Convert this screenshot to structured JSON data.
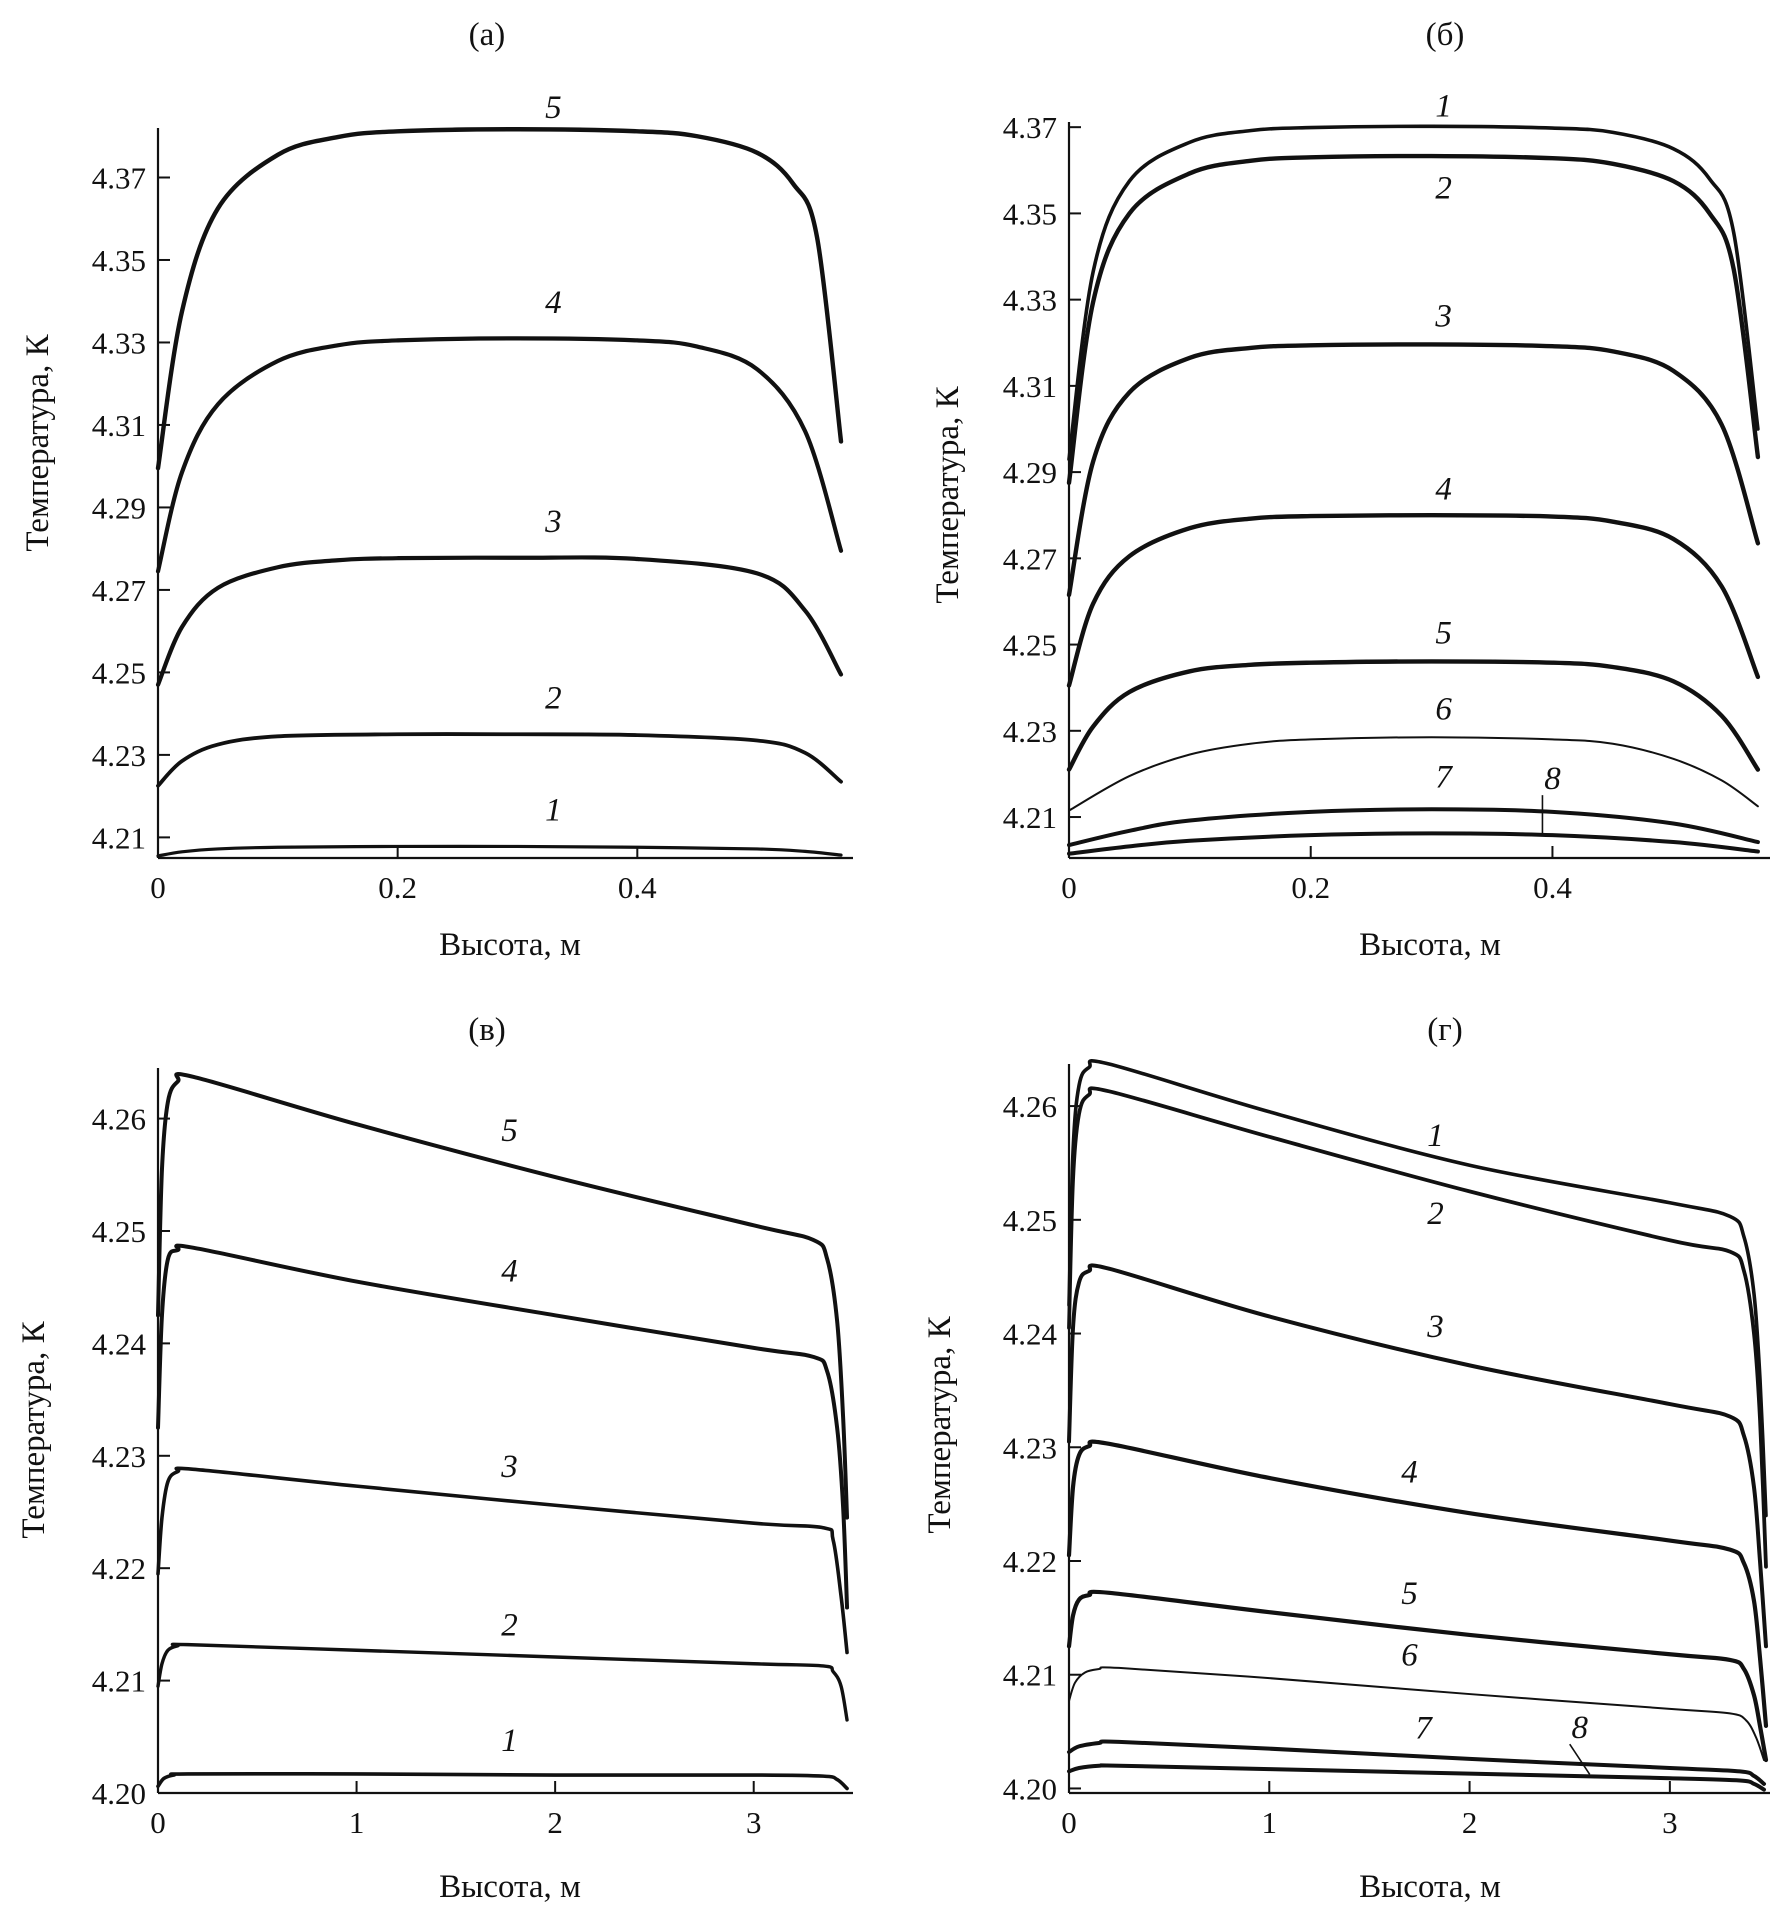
{
  "figure": {
    "panels": [
      {
        "id": "a",
        "title": "(а)"
      },
      {
        "id": "b",
        "title": "(б)"
      },
      {
        "id": "c",
        "title": "(в)"
      },
      {
        "id": "d",
        "title": "(г)"
      }
    ]
  },
  "chart_data": [
    {
      "type": "line",
      "title": "(а)",
      "xlabel": "Высота, м",
      "ylabel": "Температура, К",
      "xlim": [
        0,
        0.58
      ],
      "ylim": [
        4.205,
        4.382
      ],
      "xticks": [
        0,
        0.2,
        0.4
      ],
      "xtick_labels": [
        "0",
        "0.2",
        "0.4"
      ],
      "yticks": [
        4.21,
        4.23,
        4.25,
        4.27,
        4.29,
        4.31,
        4.33,
        4.35,
        4.37
      ],
      "ytick_labels": [
        "4.21",
        "4.23",
        "4.25",
        "4.27",
        "4.29",
        "4.31",
        "4.33",
        "4.35",
        "4.37"
      ],
      "series": [
        {
          "name": "1",
          "x": [
            0,
            0.02,
            0.05,
            0.1,
            0.2,
            0.3,
            0.4,
            0.5,
            0.54,
            0.57
          ],
          "y": [
            4.2055,
            4.2065,
            4.2072,
            4.2076,
            4.2078,
            4.2078,
            4.2076,
            4.2072,
            4.2066,
            4.2057
          ]
        },
        {
          "name": "2",
          "x": [
            0,
            0.02,
            0.05,
            0.1,
            0.2,
            0.3,
            0.4,
            0.5,
            0.54,
            0.57
          ],
          "y": [
            4.2225,
            4.2285,
            4.2325,
            4.2345,
            4.235,
            4.235,
            4.2348,
            4.2335,
            4.2305,
            4.2235
          ]
        },
        {
          "name": "3",
          "x": [
            0,
            0.02,
            0.05,
            0.1,
            0.15,
            0.2,
            0.3,
            0.4,
            0.5,
            0.54,
            0.57
          ],
          "y": [
            4.247,
            4.261,
            4.2705,
            4.2755,
            4.2772,
            4.2777,
            4.2778,
            4.2775,
            4.274,
            4.265,
            4.2495
          ]
        },
        {
          "name": "4",
          "x": [
            0,
            0.02,
            0.05,
            0.1,
            0.15,
            0.2,
            0.3,
            0.4,
            0.45,
            0.5,
            0.54,
            0.57
          ],
          "y": [
            4.2745,
            4.2985,
            4.315,
            4.3255,
            4.3293,
            4.3305,
            4.331,
            4.3305,
            4.329,
            4.3235,
            4.3085,
            4.2795
          ]
        },
        {
          "name": "5",
          "x": [
            0,
            0.02,
            0.05,
            0.1,
            0.15,
            0.2,
            0.3,
            0.4,
            0.45,
            0.5,
            0.53,
            0.55,
            0.57
          ],
          "y": [
            4.2995,
            4.3375,
            4.3625,
            4.3755,
            4.3798,
            4.3812,
            4.3817,
            4.3812,
            4.38,
            4.376,
            4.3685,
            4.3555,
            4.306
          ]
        }
      ]
    },
    {
      "type": "line",
      "title": "(б)",
      "xlabel": "Высота, м",
      "ylabel": "Температура, К",
      "xlim": [
        0,
        0.58
      ],
      "ylim": [
        4.2005,
        4.3712
      ],
      "xticks": [
        0,
        0.2,
        0.4
      ],
      "xtick_labels": [
        "0",
        "0.2",
        "0.4"
      ],
      "yticks": [
        4.21,
        4.23,
        4.25,
        4.27,
        4.29,
        4.31,
        4.33,
        4.35,
        4.37
      ],
      "ytick_labels": [
        "4.21",
        "4.23",
        "4.25",
        "4.27",
        "4.29",
        "4.31",
        "4.33",
        "4.35",
        "4.37"
      ],
      "series": [
        {
          "name": "1",
          "x": [
            0,
            0.02,
            0.05,
            0.1,
            0.15,
            0.2,
            0.3,
            0.4,
            0.45,
            0.5,
            0.53,
            0.55,
            0.57
          ],
          "y": [
            4.293,
            4.3365,
            4.3575,
            4.3665,
            4.3692,
            4.3699,
            4.3702,
            4.3698,
            4.3688,
            4.365,
            4.358,
            4.3455,
            4.3
          ]
        },
        {
          "name": "2",
          "x": [
            0,
            0.02,
            0.05,
            0.1,
            0.15,
            0.2,
            0.3,
            0.4,
            0.45,
            0.5,
            0.53,
            0.55,
            0.57
          ],
          "y": [
            4.2875,
            4.3295,
            4.35,
            4.3593,
            4.3622,
            4.363,
            4.3633,
            4.3628,
            4.3615,
            4.3575,
            4.35,
            4.337,
            4.2935
          ]
        },
        {
          "name": "3",
          "x": [
            0,
            0.02,
            0.05,
            0.1,
            0.15,
            0.2,
            0.3,
            0.4,
            0.45,
            0.5,
            0.54,
            0.57
          ],
          "y": [
            4.2615,
            4.2925,
            4.3085,
            4.3165,
            4.3188,
            4.3194,
            4.3196,
            4.3192,
            4.318,
            4.3135,
            4.301,
            4.2735
          ]
        },
        {
          "name": "4",
          "x": [
            0,
            0.02,
            0.05,
            0.1,
            0.15,
            0.2,
            0.3,
            0.4,
            0.45,
            0.5,
            0.54,
            0.57
          ],
          "y": [
            4.2405,
            4.2595,
            4.2705,
            4.277,
            4.2792,
            4.2798,
            4.28,
            4.2797,
            4.2785,
            4.2745,
            4.2635,
            4.2425
          ]
        },
        {
          "name": "5",
          "x": [
            0,
            0.02,
            0.05,
            0.1,
            0.15,
            0.2,
            0.3,
            0.4,
            0.45,
            0.5,
            0.54,
            0.57
          ],
          "y": [
            4.221,
            4.231,
            4.239,
            4.2438,
            4.2453,
            4.2458,
            4.2461,
            4.2458,
            4.2448,
            4.2415,
            4.2335,
            4.221
          ]
        },
        {
          "name": "6",
          "x": [
            0,
            0.05,
            0.1,
            0.15,
            0.2,
            0.3,
            0.4,
            0.45,
            0.5,
            0.54,
            0.57
          ],
          "y": [
            4.2115,
            4.2195,
            4.2245,
            4.227,
            4.228,
            4.2285,
            4.228,
            4.227,
            4.2235,
            4.2185,
            4.2125
          ]
        },
        {
          "name": "7",
          "x": [
            0,
            0.05,
            0.1,
            0.2,
            0.3,
            0.4,
            0.5,
            0.57
          ],
          "y": [
            4.2035,
            4.2068,
            4.2092,
            4.2112,
            4.2118,
            4.2112,
            4.2085,
            4.2042
          ]
        },
        {
          "name": "8",
          "x": [
            0,
            0.05,
            0.1,
            0.2,
            0.3,
            0.4,
            0.5,
            0.57
          ],
          "y": [
            4.2015,
            4.2032,
            4.2045,
            4.2058,
            4.2062,
            4.2058,
            4.2042,
            4.202
          ]
        }
      ]
    },
    {
      "type": "line",
      "title": "(в)",
      "xlabel": "Высота, м",
      "ylabel": "Температура, К",
      "xlim": [
        0,
        3.5
      ],
      "ylim": [
        4.2,
        4.2645
      ],
      "xticks": [
        0,
        1,
        2,
        3
      ],
      "xtick_labels": [
        "0",
        "1",
        "2",
        "3"
      ],
      "yticks": [
        4.2,
        4.21,
        4.22,
        4.23,
        4.24,
        4.25,
        4.26
      ],
      "ytick_labels": [
        "4.20",
        "4.21",
        "4.22",
        "4.23",
        "4.24",
        "4.25",
        "4.26"
      ],
      "series": [
        {
          "name": "1",
          "x": [
            0,
            0.03,
            0.08,
            0.15,
            1,
            2,
            3,
            3.35,
            3.42,
            3.47
          ],
          "y": [
            4.2006,
            4.2013,
            4.2016,
            4.2017,
            4.2017,
            4.2016,
            4.2016,
            4.2015,
            4.2012,
            4.2004
          ]
        },
        {
          "name": "2",
          "x": [
            0,
            0.02,
            0.05,
            0.1,
            0.15,
            1,
            2,
            3,
            3.35,
            3.4,
            3.44,
            3.47
          ],
          "y": [
            4.2095,
            4.2115,
            4.2127,
            4.2131,
            4.2132,
            4.2127,
            4.2121,
            4.2115,
            4.2113,
            4.2108,
            4.2095,
            4.2065
          ]
        },
        {
          "name": "3",
          "x": [
            0,
            0.02,
            0.05,
            0.1,
            0.18,
            1,
            2,
            3,
            3.35,
            3.4,
            3.44,
            3.47
          ],
          "y": [
            4.2195,
            4.2245,
            4.2277,
            4.2286,
            4.2288,
            4.2273,
            4.2256,
            4.224,
            4.2236,
            4.2225,
            4.2175,
            4.2125
          ]
        },
        {
          "name": "4",
          "x": [
            0,
            0.02,
            0.05,
            0.1,
            0.18,
            1,
            2,
            3,
            3.3,
            3.37,
            3.42,
            3.45,
            3.47
          ],
          "y": [
            4.2325,
            4.2425,
            4.2475,
            4.2483,
            4.2485,
            4.2455,
            4.2425,
            4.2396,
            4.2388,
            4.2375,
            4.2325,
            4.2255,
            4.2165
          ]
        },
        {
          "name": "5",
          "x": [
            0,
            0.02,
            0.05,
            0.1,
            0.18,
            1,
            2,
            3,
            3.3,
            3.37,
            3.42,
            3.45,
            3.47
          ],
          "y": [
            4.2425,
            4.2555,
            4.2615,
            4.2633,
            4.2637,
            4.2595,
            4.2548,
            4.2505,
            4.2492,
            4.2475,
            4.242,
            4.2335,
            4.2245
          ]
        }
      ]
    },
    {
      "type": "line",
      "title": "(г)",
      "xlabel": "Высота, м",
      "ylabel": "Температура, К",
      "xlim": [
        0,
        3.5
      ],
      "ylim": [
        4.1996,
        4.2637
      ],
      "xticks": [
        0,
        1,
        2,
        3
      ],
      "xtick_labels": [
        "0",
        "1",
        "2",
        "3"
      ],
      "yticks": [
        4.2,
        4.21,
        4.22,
        4.23,
        4.24,
        4.25,
        4.26
      ],
      "ytick_labels": [
        "4.20",
        "4.21",
        "4.22",
        "4.23",
        "4.24",
        "4.25",
        "4.26"
      ],
      "series": [
        {
          "name": "1",
          "x": [
            0,
            0.02,
            0.05,
            0.1,
            0.2,
            1,
            2,
            3,
            3.3,
            3.37,
            3.42,
            3.45,
            3.48
          ],
          "y": [
            4.2425,
            4.256,
            4.2618,
            4.2634,
            4.2637,
            4.2595,
            4.2548,
            4.2515,
            4.2503,
            4.2485,
            4.2435,
            4.236,
            4.224
          ]
        },
        {
          "name": "2",
          "x": [
            0,
            0.02,
            0.05,
            0.1,
            0.2,
            1,
            2,
            3,
            3.3,
            3.37,
            3.42,
            3.45,
            3.48
          ],
          "y": [
            4.2405,
            4.2535,
            4.2593,
            4.261,
            4.2613,
            4.2573,
            4.2525,
            4.2482,
            4.2472,
            4.2455,
            4.24,
            4.2325,
            4.2195
          ]
        },
        {
          "name": "3",
          "x": [
            0,
            0.02,
            0.05,
            0.1,
            0.2,
            1,
            2,
            3,
            3.3,
            3.37,
            3.42,
            3.45,
            3.48
          ],
          "y": [
            4.2305,
            4.2405,
            4.2445,
            4.2455,
            4.2457,
            4.2415,
            4.2372,
            4.2338,
            4.2327,
            4.231,
            4.2265,
            4.22,
            4.2125
          ]
        },
        {
          "name": "4",
          "x": [
            0,
            0.02,
            0.05,
            0.1,
            0.2,
            1,
            2,
            3,
            3.3,
            3.37,
            3.42,
            3.45,
            3.48
          ],
          "y": [
            4.2205,
            4.2265,
            4.2293,
            4.2301,
            4.2303,
            4.2273,
            4.2242,
            4.2218,
            4.221,
            4.2198,
            4.2165,
            4.2115,
            4.2055
          ]
        },
        {
          "name": "5",
          "x": [
            0,
            0.02,
            0.05,
            0.1,
            0.2,
            1,
            2,
            3,
            3.3,
            3.37,
            3.42,
            3.45,
            3.48
          ],
          "y": [
            4.2125,
            4.2152,
            4.2166,
            4.217,
            4.2172,
            4.2155,
            4.2135,
            4.2118,
            4.2113,
            4.2105,
            4.2082,
            4.2055,
            4.2025
          ]
        },
        {
          "name": "6",
          "x": [
            0,
            0.03,
            0.08,
            0.15,
            0.25,
            1,
            2,
            3,
            3.3,
            3.38,
            3.43,
            3.47
          ],
          "y": [
            4.2077,
            4.2093,
            4.2102,
            4.2105,
            4.2106,
            4.2097,
            4.2083,
            4.207,
            4.2066,
            4.206,
            4.2045,
            4.2025
          ]
        },
        {
          "name": "7",
          "x": [
            0,
            0.05,
            0.15,
            0.25,
            1,
            2,
            3,
            3.35,
            3.42,
            3.47
          ],
          "y": [
            4.2032,
            4.2037,
            4.204,
            4.2041,
            4.2035,
            4.2026,
            4.2018,
            4.2015,
            4.2011,
            4.2004
          ]
        },
        {
          "name": "8",
          "x": [
            0,
            0.05,
            0.15,
            0.25,
            1,
            2,
            3,
            3.35,
            3.42,
            3.47
          ],
          "y": [
            4.2015,
            4.2018,
            4.202,
            4.202,
            4.2017,
            4.2013,
            4.2009,
            4.2007,
            4.2004,
            4.1999
          ]
        }
      ]
    }
  ]
}
